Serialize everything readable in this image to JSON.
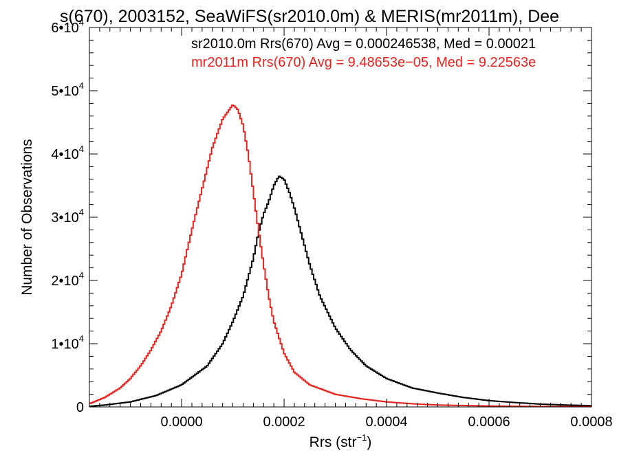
{
  "chart_data": {
    "type": "line",
    "title": "s(670), 2003152, SeaWiFS(sr2010.0m) & MERIS(mr2011m), Dee",
    "xlabel": "Rrs (str",
    "xlabel_sup": "−1",
    "xlabel_close": ")",
    "ylabel": "Number of Observations",
    "xlim": [
      -0.00018,
      0.0008
    ],
    "ylim": [
      0,
      60000
    ],
    "x_ticks": [
      {
        "value": 0.0,
        "label": "0.0000"
      },
      {
        "value": 0.0002,
        "label": "0.0002"
      },
      {
        "value": 0.0004,
        "label": "0.0004"
      },
      {
        "value": 0.0006,
        "label": "0.0006"
      },
      {
        "value": 0.0008,
        "label": "0.0008"
      }
    ],
    "y_ticks": [
      {
        "value": 0,
        "mant": "0",
        "exp": ""
      },
      {
        "value": 10000,
        "mant": "1•10",
        "exp": "4"
      },
      {
        "value": 20000,
        "mant": "2•10",
        "exp": "4"
      },
      {
        "value": 30000,
        "mant": "3•10",
        "exp": "4"
      },
      {
        "value": 40000,
        "mant": "4•10",
        "exp": "4"
      },
      {
        "value": 50000,
        "mant": "5•10",
        "exp": "4"
      },
      {
        "value": 60000,
        "mant": "6•10",
        "exp": "4"
      }
    ],
    "series": [
      {
        "name": "sr2010.0m Rrs(670) Avg = 0.000246538, Med = 0.00021",
        "color": "#000000",
        "points": [
          [
            -0.00018,
            100
          ],
          [
            -0.00015,
            300
          ],
          [
            -0.0001,
            800
          ],
          [
            -5e-05,
            1800
          ],
          [
            0.0,
            3500
          ],
          [
            5e-05,
            6500
          ],
          [
            8e-05,
            10000
          ],
          [
            0.0001,
            13500
          ],
          [
            0.00012,
            17500
          ],
          [
            0.00014,
            23500
          ],
          [
            0.00015,
            27500
          ],
          [
            0.00016,
            30500
          ],
          [
            0.00017,
            32500
          ],
          [
            0.00018,
            35000
          ],
          [
            0.00019,
            36500
          ],
          [
            0.0002,
            36000
          ],
          [
            0.00021,
            34000
          ],
          [
            0.00022,
            31500
          ],
          [
            0.00023,
            28500
          ],
          [
            0.00024,
            25500
          ],
          [
            0.00025,
            22500
          ],
          [
            0.00027,
            17500
          ],
          [
            0.0003,
            12500
          ],
          [
            0.00033,
            9000
          ],
          [
            0.00036,
            6500
          ],
          [
            0.0004,
            4500
          ],
          [
            0.00045,
            3000
          ],
          [
            0.0005,
            2200
          ],
          [
            0.00055,
            1500
          ],
          [
            0.0006,
            1000
          ],
          [
            0.00065,
            700
          ],
          [
            0.0007,
            450
          ],
          [
            0.00075,
            300
          ],
          [
            0.0008,
            200
          ]
        ]
      },
      {
        "name": "mr2011m Rrs(670) Avg = 9.48653e−05, Med = 9.22563e",
        "color": "#e8231e",
        "points": [
          [
            -0.00018,
            500
          ],
          [
            -0.00015,
            1500
          ],
          [
            -0.00012,
            3000
          ],
          [
            -0.0001,
            4500
          ],
          [
            -8e-05,
            6500
          ],
          [
            -6e-05,
            9000
          ],
          [
            -4e-05,
            12000
          ],
          [
            -2e-05,
            16000
          ],
          [
            0.0,
            21000
          ],
          [
            2e-05,
            28000
          ],
          [
            4e-05,
            34500
          ],
          [
            6e-05,
            41000
          ],
          [
            8e-05,
            45500
          ],
          [
            0.0001,
            47800
          ],
          [
            0.00011,
            47000
          ],
          [
            0.00012,
            44500
          ],
          [
            0.00013,
            40000
          ],
          [
            0.00014,
            34000
          ],
          [
            0.00015,
            28000
          ],
          [
            0.00016,
            22500
          ],
          [
            0.00017,
            17500
          ],
          [
            0.00018,
            13500
          ],
          [
            0.0002,
            8500
          ],
          [
            0.00022,
            5500
          ],
          [
            0.00025,
            3500
          ],
          [
            0.0003,
            2000
          ],
          [
            0.00035,
            1300
          ],
          [
            0.0004,
            800
          ],
          [
            0.00045,
            500
          ],
          [
            0.0005,
            300
          ],
          [
            0.0006,
            150
          ],
          [
            0.0007,
            80
          ],
          [
            0.0008,
            50
          ]
        ]
      }
    ],
    "grid": false,
    "legend": "top"
  }
}
